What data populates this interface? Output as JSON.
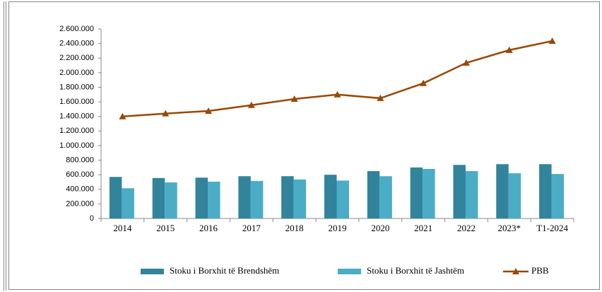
{
  "chart_data": {
    "type": "bar",
    "categories": [
      "2014",
      "2015",
      "2016",
      "2017",
      "2018",
      "2019",
      "2020",
      "2021",
      "2022",
      "2023*",
      "T1-2024"
    ],
    "series": [
      {
        "name": "Stoku i Borxhit të Brendshëm",
        "color": "#31849b",
        "type": "bar",
        "values": [
          570000,
          555000,
          560000,
          580000,
          580000,
          600000,
          650000,
          700000,
          735000,
          745000,
          745000
        ]
      },
      {
        "name": "Stoku i Borxhit të Jashtëm",
        "color": "#4bacc6",
        "type": "bar",
        "values": [
          415000,
          495000,
          505000,
          515000,
          535000,
          520000,
          580000,
          680000,
          650000,
          620000,
          610000
        ]
      },
      {
        "name": "PBB",
        "color": "#984807",
        "type": "line",
        "values": [
          1400000,
          1440000,
          1475000,
          1555000,
          1640000,
          1700000,
          1650000,
          1855000,
          2135000,
          2310000,
          2435000
        ]
      }
    ],
    "ylim": [
      0,
      2600000
    ],
    "yticks": [
      0,
      {
        "value": 200000,
        "label": "200.000"
      },
      {
        "value": 400000,
        "label": "400.000"
      },
      {
        "value": 600000,
        "label": "600.000"
      },
      {
        "value": 800000,
        "label": "800.000"
      },
      {
        "value": 1000000,
        "label": "1.000.000"
      },
      {
        "value": 1200000,
        "label": "1.200.000"
      },
      {
        "value": 1400000,
        "label": "1.400.000"
      },
      {
        "value": 1600000,
        "label": "1.600.000"
      },
      {
        "value": 1800000,
        "label": "1.800.000"
      },
      {
        "value": 2000000,
        "label": "2.000.000"
      },
      {
        "value": 2200000,
        "label": "2.200.000"
      },
      {
        "value": 2400000,
        "label": "2.400.000"
      },
      {
        "value": 2600000,
        "label": "2.600.000"
      }
    ],
    "grid": false,
    "legend": "bottom"
  }
}
